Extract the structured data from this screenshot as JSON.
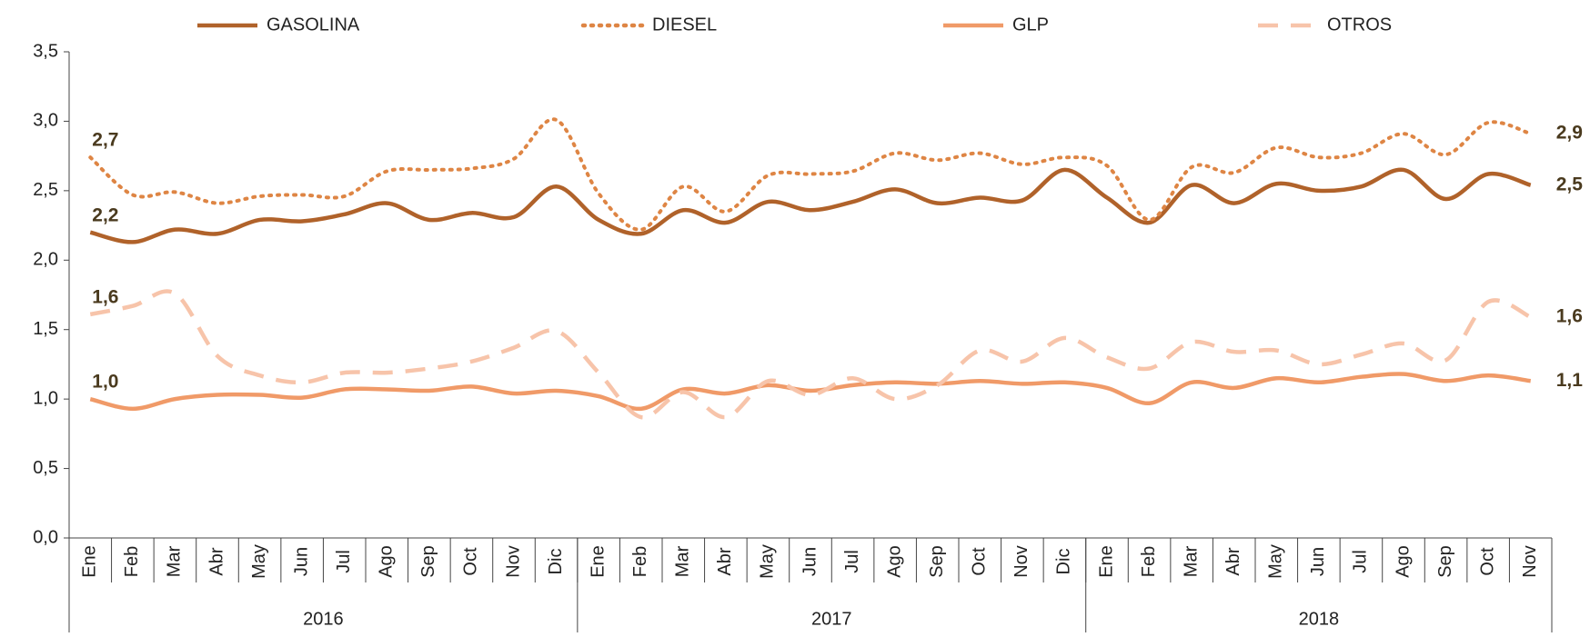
{
  "chart_data": {
    "type": "line",
    "categories": [
      "Ene",
      "Feb",
      "Mar",
      "Abr",
      "May",
      "Jun",
      "Jul",
      "Ago",
      "Sep",
      "Oct",
      "Nov",
      "Dic",
      "Ene",
      "Feb",
      "Mar",
      "Abr",
      "May",
      "Jun",
      "Jul",
      "Ago",
      "Sep",
      "Oct",
      "Nov",
      "Dic",
      "Ene",
      "Feb",
      "Mar",
      "Abr",
      "May",
      "Jun",
      "Jul",
      "Ago",
      "Sep",
      "Oct",
      "Nov"
    ],
    "groups": [
      {
        "label": "2016",
        "span": 12
      },
      {
        "label": "2017",
        "span": 12
      },
      {
        "label": "2018",
        "span": 11
      }
    ],
    "ylim": [
      0,
      3.5
    ],
    "yticks": [
      {
        "value": 0,
        "label": "0,0"
      },
      {
        "value": 0.5,
        "label": "0,5"
      },
      {
        "value": 1,
        "label": "1,0"
      },
      {
        "value": 1.5,
        "label": "1,5"
      },
      {
        "value": 2,
        "label": "2,0"
      },
      {
        "value": 2.5,
        "label": "2,5"
      },
      {
        "value": 3,
        "label": "3,0"
      },
      {
        "value": 3.5,
        "label": "3,5"
      }
    ],
    "legend": "top",
    "series": [
      {
        "name": "GASOLINA",
        "color": "#b0622a",
        "style": "solid",
        "values": [
          2.2,
          2.13,
          2.22,
          2.19,
          2.29,
          2.28,
          2.33,
          2.41,
          2.29,
          2.34,
          2.31,
          2.53,
          2.29,
          2.19,
          2.36,
          2.27,
          2.42,
          2.36,
          2.42,
          2.51,
          2.41,
          2.45,
          2.43,
          2.65,
          2.45,
          2.27,
          2.54,
          2.41,
          2.55,
          2.5,
          2.53,
          2.65,
          2.44,
          2.62,
          2.54
        ],
        "value_labels": [
          "2,2",
          null,
          null,
          null,
          null,
          null,
          null,
          null,
          null,
          null,
          null,
          null,
          null,
          null,
          null,
          null,
          null,
          null,
          null,
          null,
          null,
          null,
          null,
          null,
          null,
          null,
          null,
          null,
          null,
          null,
          null,
          null,
          null,
          null,
          "2,5"
        ]
      },
      {
        "name": "DIESEL",
        "color": "#de8544",
        "style": "dotted",
        "values": [
          2.74,
          2.47,
          2.49,
          2.41,
          2.46,
          2.47,
          2.46,
          2.64,
          2.65,
          2.66,
          2.73,
          3.01,
          2.48,
          2.22,
          2.53,
          2.35,
          2.61,
          2.62,
          2.64,
          2.77,
          2.72,
          2.77,
          2.69,
          2.74,
          2.68,
          2.29,
          2.67,
          2.63,
          2.81,
          2.74,
          2.77,
          2.91,
          2.76,
          2.99,
          2.91
        ],
        "value_labels": [
          "2,7",
          null,
          null,
          null,
          null,
          null,
          null,
          null,
          null,
          null,
          null,
          null,
          null,
          null,
          null,
          null,
          null,
          null,
          null,
          null,
          null,
          null,
          null,
          null,
          null,
          null,
          null,
          null,
          null,
          null,
          null,
          null,
          null,
          null,
          "2,9"
        ]
      },
      {
        "name": "GLP",
        "color": "#f09a68",
        "style": "solid",
        "values": [
          1.0,
          0.93,
          1.0,
          1.03,
          1.03,
          1.01,
          1.07,
          1.07,
          1.06,
          1.09,
          1.04,
          1.06,
          1.02,
          0.93,
          1.07,
          1.04,
          1.1,
          1.06,
          1.1,
          1.12,
          1.11,
          1.13,
          1.11,
          1.12,
          1.08,
          0.97,
          1.12,
          1.08,
          1.15,
          1.12,
          1.16,
          1.18,
          1.13,
          1.17,
          1.13
        ],
        "value_labels": [
          "1,0",
          null,
          null,
          null,
          null,
          null,
          null,
          null,
          null,
          null,
          null,
          null,
          null,
          null,
          null,
          null,
          null,
          null,
          null,
          null,
          null,
          null,
          null,
          null,
          null,
          null,
          null,
          null,
          null,
          null,
          null,
          null,
          null,
          null,
          "1,1"
        ]
      },
      {
        "name": "OTROS",
        "color": "#f7c4aa",
        "style": "dashed",
        "values": [
          1.61,
          1.67,
          1.76,
          1.31,
          1.17,
          1.12,
          1.19,
          1.19,
          1.22,
          1.27,
          1.37,
          1.49,
          1.19,
          0.87,
          1.05,
          0.87,
          1.13,
          1.03,
          1.15,
          1.0,
          1.1,
          1.35,
          1.27,
          1.44,
          1.3,
          1.22,
          1.41,
          1.34,
          1.35,
          1.25,
          1.32,
          1.4,
          1.28,
          1.7,
          1.59
        ],
        "value_labels": [
          "1,6",
          null,
          null,
          null,
          null,
          null,
          null,
          null,
          null,
          null,
          null,
          null,
          null,
          null,
          null,
          null,
          null,
          null,
          null,
          null,
          null,
          null,
          null,
          null,
          null,
          null,
          null,
          null,
          null,
          null,
          null,
          null,
          null,
          null,
          "1,6"
        ]
      }
    ]
  }
}
